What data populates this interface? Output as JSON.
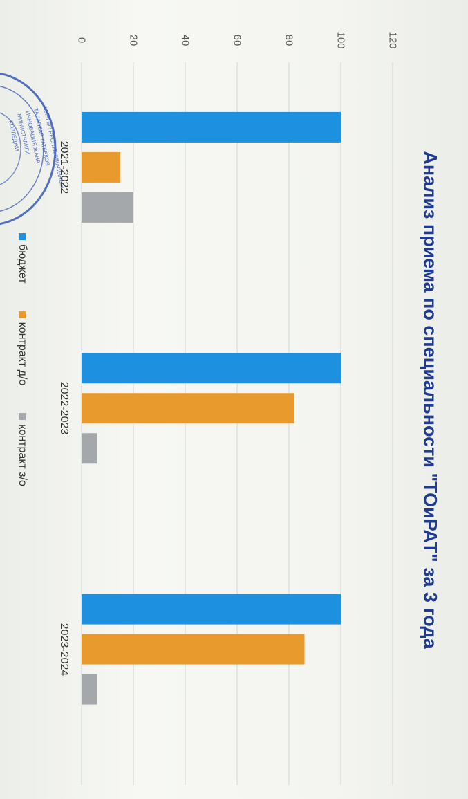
{
  "chart_data": {
    "type": "bar",
    "title": "Анализ приема по специальности \"ТОиРАТ\" за 3 года",
    "categories": [
      "2021-2022",
      "2022-2023",
      "2023-2024"
    ],
    "series": [
      {
        "name": "бюджет",
        "values": [
          100,
          100,
          100
        ],
        "color": "#1e90e0"
      },
      {
        "name": "контракт д/о",
        "values": [
          15,
          82,
          86
        ],
        "color": "#e99a2c"
      },
      {
        "name": "контракт з/о",
        "values": [
          20,
          6,
          6
        ],
        "color": "#a4a8ab"
      }
    ],
    "ylim": [
      0,
      120
    ],
    "yticks": [
      0,
      20,
      40,
      60,
      80,
      100,
      120
    ],
    "grid": true,
    "legend_position": "bottom",
    "orientation": "rotated-90"
  },
  "stamp": {
    "lines": [
      "КЫРГЫЗ РЕСПУБЛИКАСЫНЫН",
      "ТАЛАПТАР ТАТБЕКОВ",
      "ИННОВАЦИЯ ЖАНА",
      "МИНИСТРЛИГИ",
      "КОЛЛЕДЖИ"
    ]
  }
}
